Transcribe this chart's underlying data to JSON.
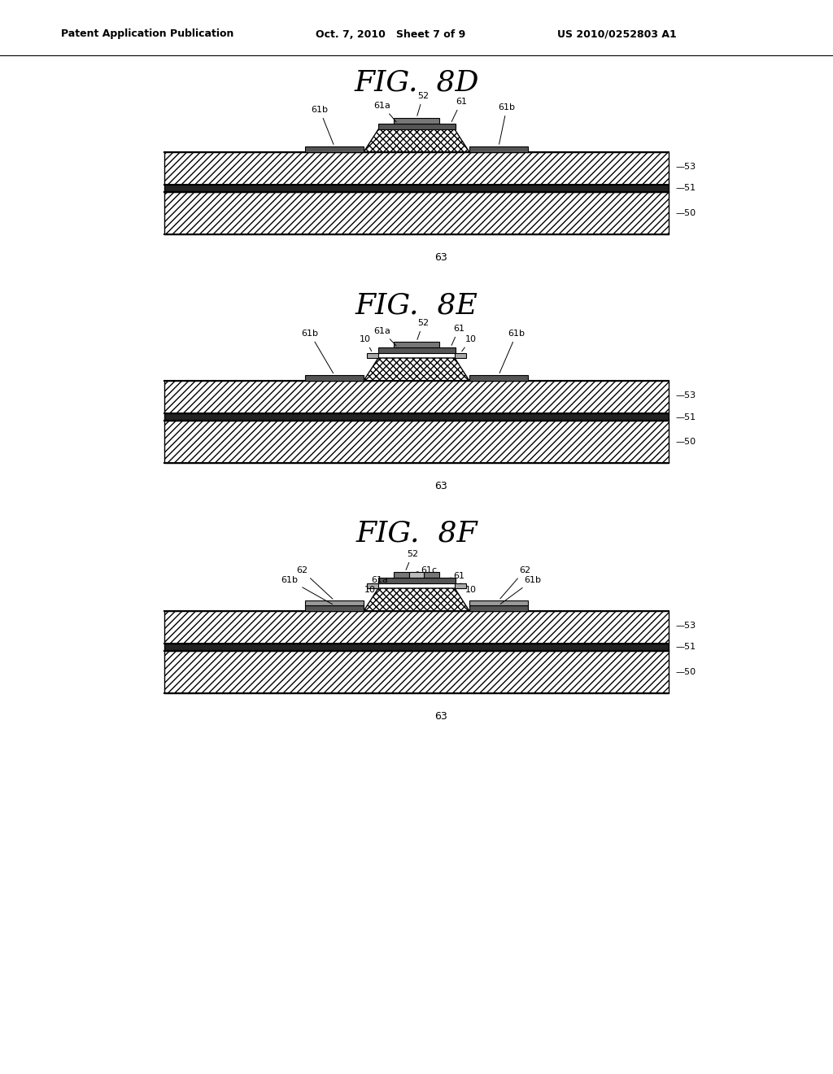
{
  "bg_color": "#ffffff",
  "header_left": "Patent Application Publication",
  "header_mid": "Oct. 7, 2010   Sheet 7 of 9",
  "header_right": "US 2010/0252803 A1",
  "fig_8d_title": "FIG.  8D",
  "fig_8e_title": "FIG.  8E",
  "fig_8f_title": "FIG.  8F",
  "layer_labels": [
    "53",
    "51",
    "50"
  ],
  "label_63": "63"
}
